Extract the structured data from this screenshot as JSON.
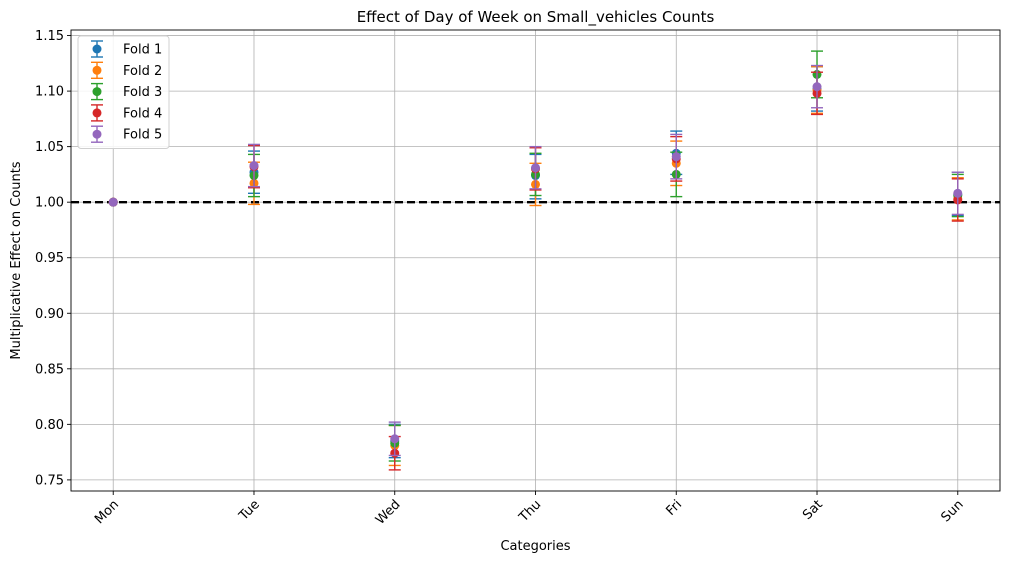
{
  "chart_data": {
    "type": "scatter",
    "title": "Effect of Day of Week on Small_vehicles Counts",
    "xlabel": "Categories",
    "ylabel": "Multiplicative Effect on Counts",
    "categories": [
      "Mon",
      "Tue",
      "Wed",
      "Thu",
      "Fri",
      "Sat",
      "Sun"
    ],
    "ylim": [
      0.74,
      1.155
    ],
    "yticks": [
      "0.75",
      "0.80",
      "0.85",
      "0.90",
      "0.95",
      "1.00",
      "1.05",
      "1.10",
      "1.15"
    ],
    "grid": true,
    "legend_position": "top-left",
    "reference_line": 1.0,
    "error_bars": true,
    "series": [
      {
        "name": "Fold 1",
        "color": "#1f77b4",
        "values": [
          1.0,
          1.027,
          0.785,
          1.024,
          1.044,
          1.102,
          1.007
        ],
        "lower": [
          1.0,
          1.008,
          0.77,
          1.003,
          1.025,
          1.082,
          0.988
        ],
        "upper": [
          1.0,
          1.046,
          0.8,
          1.043,
          1.064,
          1.122,
          1.027
        ]
      },
      {
        "name": "Fold 2",
        "color": "#ff7f0e",
        "values": [
          1.0,
          1.017,
          0.781,
          1.016,
          1.035,
          1.101,
          1.003
        ],
        "lower": [
          1.0,
          0.998,
          0.763,
          0.997,
          1.015,
          1.08,
          0.984
        ],
        "upper": [
          1.0,
          1.036,
          0.799,
          1.035,
          1.055,
          1.122,
          1.022
        ]
      },
      {
        "name": "Fold 3",
        "color": "#2ca02c",
        "values": [
          1.0,
          1.024,
          0.783,
          1.025,
          1.025,
          1.115,
          1.006
        ],
        "lower": [
          1.0,
          1.005,
          0.767,
          1.006,
          1.005,
          1.094,
          0.987
        ],
        "upper": [
          1.0,
          1.043,
          0.799,
          1.044,
          1.045,
          1.136,
          1.025
        ]
      },
      {
        "name": "Fold 4",
        "color": "#d62728",
        "values": [
          1.0,
          1.032,
          0.774,
          1.03,
          1.039,
          1.098,
          1.002
        ],
        "lower": [
          1.0,
          1.013,
          0.759,
          1.011,
          1.019,
          1.079,
          0.983
        ],
        "upper": [
          1.0,
          1.051,
          0.789,
          1.049,
          1.059,
          1.117,
          1.021
        ]
      },
      {
        "name": "Fold 5",
        "color": "#9467bd",
        "values": [
          1.0,
          1.033,
          0.787,
          1.031,
          1.041,
          1.104,
          1.008
        ],
        "lower": [
          1.0,
          1.014,
          0.772,
          1.012,
          1.021,
          1.085,
          0.989
        ],
        "upper": [
          1.0,
          1.052,
          0.802,
          1.05,
          1.061,
          1.123,
          1.027
        ]
      }
    ]
  }
}
